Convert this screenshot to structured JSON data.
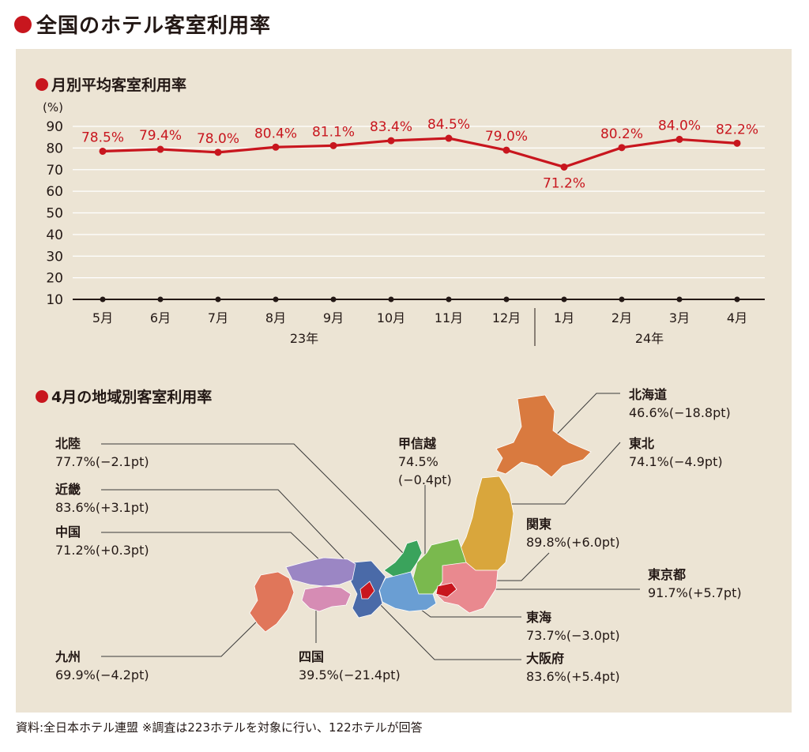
{
  "title": "全国のホテル客室利用率",
  "chart_data": [
    {
      "type": "line",
      "title": "月別平均客室利用率",
      "ylabel": "(%)",
      "ylim": [
        10,
        90
      ],
      "yticks": [
        "10",
        "20",
        "30",
        "40",
        "50",
        "60",
        "70",
        "80",
        "90"
      ],
      "categories": [
        "5月",
        "6月",
        "7月",
        "8月",
        "9月",
        "10月",
        "11月",
        "12月",
        "1月",
        "2月",
        "3月",
        "4月"
      ],
      "year_labels": [
        "23年",
        "24年"
      ],
      "values": [
        78.5,
        79.4,
        78.0,
        80.4,
        81.1,
        83.4,
        84.5,
        79.0,
        71.2,
        80.2,
        84.0,
        82.2
      ],
      "data_labels": [
        "78.5%",
        "79.4%",
        "78.0%",
        "80.4%",
        "81.1%",
        "83.4%",
        "84.5%",
        "79.0%",
        "71.2%",
        "80.2%",
        "84.0%",
        "82.2%"
      ],
      "grid": true,
      "line_color": "#c8161e"
    }
  ],
  "map": {
    "title": "4月の地域別客室利用率",
    "regions": {
      "hokkaido": {
        "name": "北海道",
        "value": "46.6%(−18.8pt)",
        "color": "#d97a3f"
      },
      "tohoku": {
        "name": "東北",
        "value": "74.1%(−4.9pt)",
        "color": "#d9a63c"
      },
      "kanto": {
        "name": "関東",
        "value": "89.8%(+6.0pt)",
        "color": "#e9898f"
      },
      "tokyo": {
        "name": "東京都",
        "value": "91.7%(+5.7pt)",
        "color": "#c8161e"
      },
      "tokai": {
        "name": "東海",
        "value": "73.7%(−3.0pt)",
        "color": "#6a9ed3"
      },
      "osaka": {
        "name": "大阪府",
        "value": "83.6%(+5.4pt)",
        "color": "#c8161e"
      },
      "koshinetsu": {
        "name": "甲信越",
        "value_line1": "74.5%",
        "value_line2": "(−0.4pt)",
        "color": "#7ab94e"
      },
      "hokuriku": {
        "name": "北陸",
        "value": "77.7%(−2.1pt)",
        "color": "#3aa35c"
      },
      "kinki": {
        "name": "近畿",
        "value": "83.6%(+3.1pt)",
        "color": "#4a6aa8"
      },
      "chugoku": {
        "name": "中国",
        "value": "71.2%(+0.3pt)",
        "color": "#9b86c4"
      },
      "shikoku": {
        "name": "四国",
        "value": "39.5%(−21.4pt)",
        "color": "#d68cb4"
      },
      "kyushu": {
        "name": "九州",
        "value": "69.9%(−4.2pt)",
        "color": "#e0765a"
      }
    }
  },
  "source": "資料:全日本ホテル連盟 ※調査は223ホテルを対象に行い、122ホテルが回答"
}
